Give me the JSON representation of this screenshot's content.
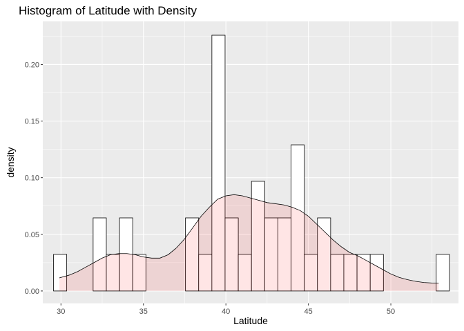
{
  "chart_data": {
    "type": "bar",
    "title": "Histogram of Latitude with Density",
    "xlabel": "Latitude",
    "ylabel": "density",
    "xlim": [
      28.9,
      54.1
    ],
    "ylim": [
      -0.011,
      0.238
    ],
    "x_ticks": [
      30,
      35,
      40,
      45,
      50
    ],
    "x_tick_labels": [
      "30",
      "35",
      "40",
      "45",
      "50"
    ],
    "y_ticks": [
      0.0,
      0.05,
      0.1,
      0.15,
      0.2
    ],
    "y_tick_labels": [
      "0.00",
      "0.05",
      "0.10",
      "0.15",
      "0.20"
    ],
    "grid": true,
    "colors": {
      "panel": "#ebebeb",
      "grid": "#ffffff",
      "bar_fill": "#ffffff",
      "bar_stroke": "#000000",
      "density_fill": "#ff0000",
      "density_fill_opacity": 0.1,
      "density_stroke": "#000000"
    },
    "series": [
      {
        "kind": "histogram",
        "bin_width": 0.8,
        "bin_centers": [
          29.95,
          30.75,
          31.55,
          32.35,
          33.15,
          33.95,
          34.75,
          35.55,
          36.35,
          37.15,
          37.95,
          38.75,
          39.55,
          40.35,
          41.15,
          41.95,
          42.75,
          43.55,
          44.35,
          45.15,
          45.95,
          46.75,
          47.55,
          48.35,
          49.15,
          49.95,
          50.75,
          51.55,
          52.35,
          53.15
        ],
        "values": [
          0.0323,
          0,
          0,
          0.0645,
          0.0323,
          0.0645,
          0.0323,
          0,
          0,
          0,
          0.0645,
          0.0323,
          0.2258,
          0.0645,
          0.0323,
          0.0968,
          0.0645,
          0.0645,
          0.129,
          0.0323,
          0.0645,
          0.0323,
          0.0323,
          0.0323,
          0.0323,
          0,
          0,
          0,
          0,
          0.0323
        ]
      },
      {
        "kind": "density",
        "x": [
          29.9,
          30.5,
          31.0,
          31.5,
          32.0,
          32.5,
          33.0,
          33.5,
          34.0,
          34.5,
          35.0,
          35.5,
          36.0,
          36.5,
          37.0,
          37.5,
          38.0,
          38.5,
          39.0,
          39.5,
          40.0,
          40.5,
          41.0,
          41.5,
          42.0,
          42.5,
          43.0,
          43.5,
          44.0,
          44.5,
          45.0,
          45.5,
          46.0,
          46.5,
          47.0,
          47.5,
          48.0,
          48.5,
          49.0,
          49.5,
          50.0,
          50.5,
          51.0,
          51.5,
          52.0,
          52.5,
          52.9
        ],
        "y": [
          0.0115,
          0.014,
          0.017,
          0.021,
          0.025,
          0.029,
          0.032,
          0.033,
          0.033,
          0.032,
          0.03,
          0.029,
          0.029,
          0.032,
          0.038,
          0.046,
          0.056,
          0.066,
          0.074,
          0.081,
          0.084,
          0.085,
          0.084,
          0.082,
          0.08,
          0.078,
          0.077,
          0.076,
          0.074,
          0.071,
          0.066,
          0.059,
          0.052,
          0.045,
          0.039,
          0.034,
          0.031,
          0.027,
          0.023,
          0.019,
          0.015,
          0.012,
          0.01,
          0.0085,
          0.0075,
          0.007,
          0.0068
        ]
      }
    ]
  }
}
